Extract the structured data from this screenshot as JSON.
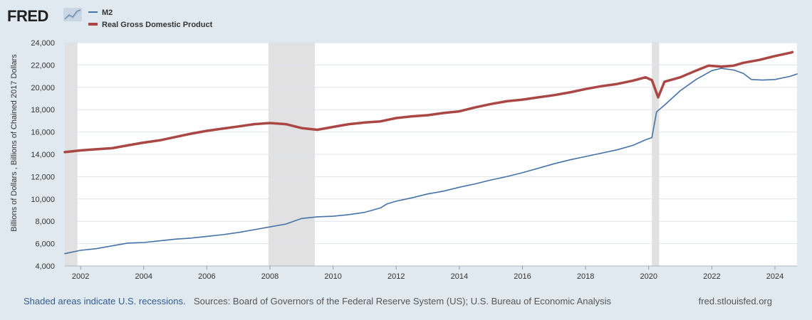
{
  "header": {
    "logo_text": "FRED",
    "logo_icon": "fred-chart-icon"
  },
  "colors": {
    "background": "#e1e9f0",
    "plot_background": "#ffffff",
    "recession_shade": "#e1e1e1",
    "grid": "#dde2e8",
    "m2": "#4572a7",
    "gdp": "#aa4643",
    "link": "#2f5b91"
  },
  "footer": {
    "note": "Shaded areas indicate U.S. recessions.",
    "sources": "Sources: Board of Governors of the Federal Reserve System (US); U.S. Bureau of Economic Analysis",
    "site": "fred.stlouisfed.org"
  },
  "chart_data": {
    "type": "line",
    "title": "",
    "xlabel": "",
    "ylabel": "Billions of Dollars , Billions of Chained 2017 Dollars",
    "xlim": [
      2001.5,
      2024.7
    ],
    "ylim": [
      4000,
      24000
    ],
    "grid": true,
    "legend_position": "top-left",
    "x_ticks": [
      2002,
      2004,
      2006,
      2008,
      2010,
      2012,
      2014,
      2016,
      2018,
      2020,
      2022,
      2024
    ],
    "x_tick_labels": [
      "2002",
      "2004",
      "2006",
      "2008",
      "2010",
      "2012",
      "2014",
      "2016",
      "2018",
      "2020",
      "2022",
      "2024"
    ],
    "y_ticks": [
      4000,
      6000,
      8000,
      10000,
      12000,
      14000,
      16000,
      18000,
      20000,
      22000,
      24000
    ],
    "y_tick_labels": [
      "4,000",
      "6,000",
      "8,000",
      "10,000",
      "12,000",
      "14,000",
      "16,000",
      "18,000",
      "20,000",
      "22,000",
      "24,000"
    ],
    "recessions": [
      {
        "start": 2001.5,
        "end": 2001.9
      },
      {
        "start": 2007.95,
        "end": 2009.42
      },
      {
        "start": 2020.1,
        "end": 2020.33
      }
    ],
    "series": [
      {
        "name": "M2",
        "color_key": "m2",
        "stroke": "thin",
        "points": [
          [
            2001.5,
            5100
          ],
          [
            2002.0,
            5400
          ],
          [
            2002.5,
            5550
          ],
          [
            2003.0,
            5800
          ],
          [
            2003.5,
            6050
          ],
          [
            2004.0,
            6100
          ],
          [
            2004.5,
            6250
          ],
          [
            2005.0,
            6400
          ],
          [
            2005.5,
            6500
          ],
          [
            2006.0,
            6650
          ],
          [
            2006.5,
            6800
          ],
          [
            2007.0,
            7000
          ],
          [
            2007.5,
            7250
          ],
          [
            2008.0,
            7500
          ],
          [
            2008.5,
            7750
          ],
          [
            2009.0,
            8250
          ],
          [
            2009.5,
            8400
          ],
          [
            2010.0,
            8450
          ],
          [
            2010.5,
            8600
          ],
          [
            2011.0,
            8800
          ],
          [
            2011.5,
            9200
          ],
          [
            2011.7,
            9550
          ],
          [
            2012.0,
            9800
          ],
          [
            2012.5,
            10100
          ],
          [
            2013.0,
            10450
          ],
          [
            2013.5,
            10700
          ],
          [
            2014.0,
            11050
          ],
          [
            2014.5,
            11350
          ],
          [
            2015.0,
            11700
          ],
          [
            2015.5,
            12000
          ],
          [
            2016.0,
            12350
          ],
          [
            2016.5,
            12750
          ],
          [
            2017.0,
            13150
          ],
          [
            2017.5,
            13500
          ],
          [
            2018.0,
            13800
          ],
          [
            2018.5,
            14100
          ],
          [
            2019.0,
            14400
          ],
          [
            2019.5,
            14800
          ],
          [
            2019.9,
            15300
          ],
          [
            2020.1,
            15500
          ],
          [
            2020.25,
            17800
          ],
          [
            2020.5,
            18400
          ],
          [
            2021.0,
            19700
          ],
          [
            2021.5,
            20700
          ],
          [
            2022.0,
            21500
          ],
          [
            2022.3,
            21700
          ],
          [
            2022.7,
            21550
          ],
          [
            2023.0,
            21250
          ],
          [
            2023.25,
            20700
          ],
          [
            2023.6,
            20650
          ],
          [
            2024.0,
            20700
          ],
          [
            2024.5,
            21000
          ],
          [
            2024.7,
            21200
          ]
        ]
      },
      {
        "name": "Real Gross Domestic Product",
        "color_key": "gdp",
        "stroke": "thick",
        "points": [
          [
            2001.5,
            14200
          ],
          [
            2002.0,
            14350
          ],
          [
            2002.5,
            14450
          ],
          [
            2003.0,
            14550
          ],
          [
            2003.5,
            14800
          ],
          [
            2004.0,
            15050
          ],
          [
            2004.5,
            15250
          ],
          [
            2005.0,
            15550
          ],
          [
            2005.5,
            15850
          ],
          [
            2006.0,
            16100
          ],
          [
            2006.5,
            16300
          ],
          [
            2007.0,
            16500
          ],
          [
            2007.5,
            16700
          ],
          [
            2008.0,
            16800
          ],
          [
            2008.5,
            16700
          ],
          [
            2009.0,
            16350
          ],
          [
            2009.5,
            16200
          ],
          [
            2010.0,
            16450
          ],
          [
            2010.5,
            16700
          ],
          [
            2011.0,
            16850
          ],
          [
            2011.5,
            16950
          ],
          [
            2012.0,
            17250
          ],
          [
            2012.5,
            17400
          ],
          [
            2013.0,
            17500
          ],
          [
            2013.5,
            17700
          ],
          [
            2014.0,
            17850
          ],
          [
            2014.5,
            18200
          ],
          [
            2015.0,
            18500
          ],
          [
            2015.5,
            18750
          ],
          [
            2016.0,
            18900
          ],
          [
            2016.5,
            19100
          ],
          [
            2017.0,
            19300
          ],
          [
            2017.5,
            19550
          ],
          [
            2018.0,
            19850
          ],
          [
            2018.5,
            20100
          ],
          [
            2019.0,
            20300
          ],
          [
            2019.5,
            20600
          ],
          [
            2019.9,
            20900
          ],
          [
            2020.1,
            20650
          ],
          [
            2020.3,
            19100
          ],
          [
            2020.5,
            20500
          ],
          [
            2021.0,
            20900
          ],
          [
            2021.5,
            21500
          ],
          [
            2021.9,
            21950
          ],
          [
            2022.3,
            21850
          ],
          [
            2022.7,
            21950
          ],
          [
            2023.0,
            22200
          ],
          [
            2023.5,
            22450
          ],
          [
            2024.0,
            22800
          ],
          [
            2024.5,
            23100
          ],
          [
            2024.55,
            23150
          ]
        ]
      }
    ]
  }
}
